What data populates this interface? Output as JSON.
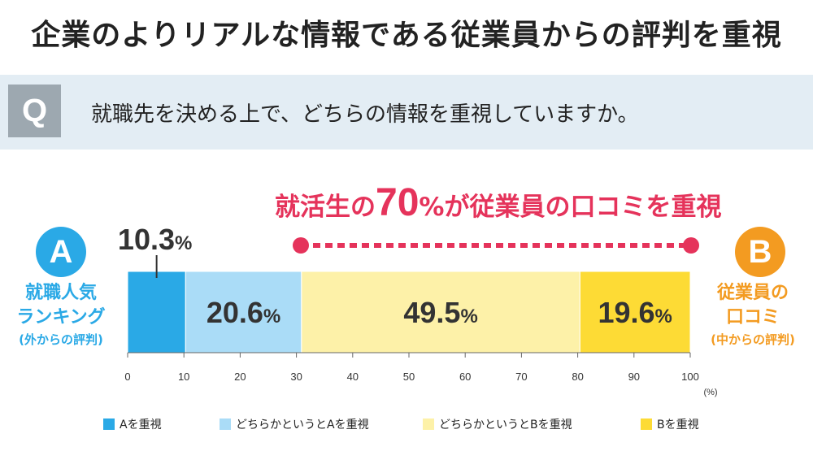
{
  "title": "企業のよりリアルな情報である従業員からの評判を重視",
  "question": {
    "badge": "Q",
    "text": "就職先を決める上で、どちらの情報を重視していますか。"
  },
  "headline": {
    "prefix": "就活生の",
    "number": "70",
    "suffix": "%が従業員の口コミを重視"
  },
  "side_a": {
    "badge": "A",
    "line1": "就職人気",
    "line2": "ランキング",
    "line3": "(外からの評判)"
  },
  "side_b": {
    "badge": "B",
    "line1": "従業員の",
    "line2": "口コミ",
    "line3": "(中からの評判)"
  },
  "colors": {
    "a": "#2aa9e6",
    "a_light": "#aadcf7",
    "b_light": "#fdf1a8",
    "b": "#fddb35",
    "accent": "#e5335b",
    "circle_b": "#f39b21"
  },
  "chart_data": {
    "type": "bar",
    "orientation": "horizontal-stacked",
    "unit": "(%)",
    "xlim": [
      0,
      100
    ],
    "ticks": [
      "0",
      "10",
      "20",
      "30",
      "40",
      "50",
      "60",
      "70",
      "80",
      "90",
      "100"
    ],
    "series": [
      {
        "name": "Aを重視",
        "value": 10.3,
        "label": "10.3",
        "color": "#2aa9e6",
        "label_outside": true
      },
      {
        "name": "どちらかというとAを重視",
        "value": 20.6,
        "label": "20.6",
        "color": "#aadcf7"
      },
      {
        "name": "どちらかというとBを重視",
        "value": 49.5,
        "label": "49.5",
        "color": "#fdf1a8"
      },
      {
        "name": "Bを重視",
        "value": 19.6,
        "label": "19.6",
        "color": "#fddb35"
      }
    ],
    "percent_sign": "%"
  }
}
